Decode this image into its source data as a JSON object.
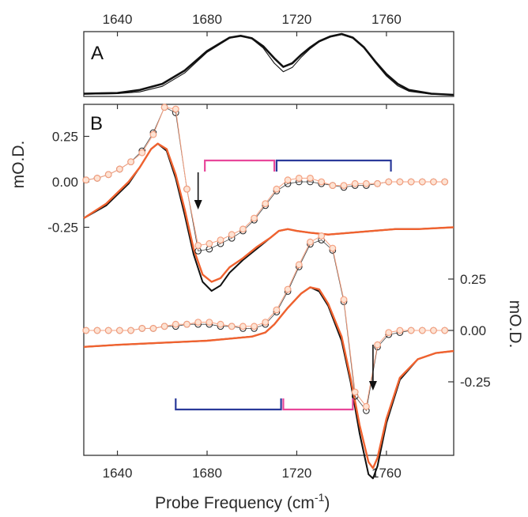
{
  "chart_data": [
    {
      "panel": "A",
      "type": "line",
      "x_ticks": [
        1640,
        1680,
        1720,
        1760
      ],
      "xlim": [
        1625,
        1790
      ],
      "series": [
        {
          "style": "thick",
          "color": "#111111",
          "x": [
            1625,
            1640,
            1650,
            1660,
            1670,
            1680,
            1690,
            1695,
            1700,
            1705,
            1710,
            1714,
            1718,
            1722,
            1726,
            1730,
            1735,
            1740,
            1745,
            1750,
            1755,
            1760,
            1765,
            1770,
            1780,
            1790
          ],
          "y": [
            0.02,
            0.03,
            0.08,
            0.18,
            0.4,
            0.72,
            0.94,
            0.97,
            0.93,
            0.8,
            0.6,
            0.46,
            0.52,
            0.66,
            0.78,
            0.88,
            0.96,
            1.0,
            0.94,
            0.78,
            0.55,
            0.34,
            0.18,
            0.08,
            0.02,
            0.0
          ]
        },
        {
          "style": "thin",
          "color": "#111111",
          "x": [
            1625,
            1640,
            1650,
            1660,
            1670,
            1680,
            1690,
            1695,
            1700,
            1705,
            1710,
            1714,
            1718,
            1722,
            1726,
            1730,
            1735,
            1740,
            1745,
            1750,
            1755,
            1760,
            1765,
            1770,
            1780,
            1790
          ],
          "y": [
            0.01,
            0.02,
            0.05,
            0.14,
            0.36,
            0.7,
            0.93,
            0.97,
            0.92,
            0.77,
            0.52,
            0.38,
            0.45,
            0.62,
            0.76,
            0.87,
            0.95,
            0.99,
            0.93,
            0.77,
            0.53,
            0.31,
            0.15,
            0.06,
            0.01,
            0.0
          ]
        }
      ]
    },
    {
      "panel": "B",
      "type": "line",
      "xlabel": "Probe Frequency (cm",
      "xlabel_sup": "-1",
      "xlabel_close": ")",
      "ylabel_left": "mO.D.",
      "ylabel_right": "mO.D.",
      "x_ticks": [
        1640,
        1680,
        1720,
        1760
      ],
      "xlim": [
        1625,
        1790
      ],
      "upper_y_ticks": [
        0.25,
        0.0,
        -0.25
      ],
      "upper_y_tick_labels": [
        "0.25",
        "0.00",
        "-0.25"
      ],
      "lower_y_ticks": [
        0.25,
        0.0,
        -0.25
      ],
      "lower_y_tick_labels": [
        "0.25",
        "0.00",
        "-0.25"
      ],
      "upper_trace": {
        "circles_black": {
          "x": [
            1626,
            1631,
            1636,
            1641,
            1646,
            1651,
            1656,
            1661,
            1666,
            1671,
            1676,
            1681,
            1686,
            1691,
            1696,
            1701,
            1706,
            1711,
            1716,
            1721,
            1726,
            1731,
            1736,
            1741,
            1746,
            1751,
            1756,
            1761,
            1766,
            1771,
            1776,
            1781,
            1786
          ],
          "y": [
            0.01,
            0.02,
            0.04,
            0.07,
            0.11,
            0.17,
            0.27,
            0.41,
            0.38,
            -0.04,
            -0.38,
            -0.37,
            -0.34,
            -0.31,
            -0.27,
            -0.21,
            -0.13,
            -0.05,
            -0.01,
            0.0,
            0.0,
            -0.01,
            -0.02,
            -0.03,
            -0.02,
            -0.02,
            -0.01,
            0.0,
            0.0,
            0.0,
            0.0,
            0.0,
            0.0
          ]
        },
        "circles_orange": {
          "x": [
            1626,
            1631,
            1636,
            1641,
            1646,
            1651,
            1656,
            1661,
            1666,
            1671,
            1676,
            1681,
            1686,
            1691,
            1696,
            1701,
            1706,
            1711,
            1716,
            1721,
            1726,
            1731,
            1736,
            1741,
            1746,
            1751,
            1756,
            1761,
            1766,
            1771,
            1776,
            1781,
            1786
          ],
          "y": [
            0.01,
            0.02,
            0.04,
            0.07,
            0.11,
            0.16,
            0.26,
            0.41,
            0.4,
            -0.04,
            -0.35,
            -0.34,
            -0.32,
            -0.29,
            -0.26,
            -0.2,
            -0.12,
            -0.04,
            0.01,
            0.02,
            0.02,
            0.0,
            -0.02,
            -0.02,
            -0.01,
            -0.01,
            -0.01,
            0.0,
            0.0,
            0.0,
            0.0,
            0.0,
            0.0
          ]
        },
        "line_black": {
          "x": [
            1625,
            1635,
            1645,
            1650,
            1655,
            1658,
            1662,
            1666,
            1670,
            1674,
            1678,
            1682,
            1686,
            1690,
            1696,
            1702,
            1708,
            1712,
            1716,
            1720,
            1726,
            1734,
            1744,
            1754,
            1764,
            1774,
            1790
          ],
          "y": [
            -0.2,
            -0.13,
            -0.01,
            0.08,
            0.18,
            0.21,
            0.17,
            0.02,
            -0.18,
            -0.4,
            -0.55,
            -0.6,
            -0.57,
            -0.5,
            -0.43,
            -0.37,
            -0.31,
            -0.27,
            -0.26,
            -0.27,
            -0.28,
            -0.29,
            -0.28,
            -0.27,
            -0.26,
            -0.26,
            -0.25
          ]
        },
        "line_orange": {
          "x": [
            1625,
            1635,
            1645,
            1650,
            1655,
            1658,
            1662,
            1666,
            1670,
            1674,
            1678,
            1682,
            1686,
            1690,
            1696,
            1702,
            1708,
            1712,
            1716,
            1720,
            1726,
            1734,
            1744,
            1754,
            1764,
            1774,
            1790
          ],
          "y": [
            -0.2,
            -0.12,
            0.0,
            0.08,
            0.18,
            0.21,
            0.18,
            0.04,
            -0.15,
            -0.37,
            -0.51,
            -0.55,
            -0.53,
            -0.47,
            -0.42,
            -0.36,
            -0.31,
            -0.27,
            -0.26,
            -0.27,
            -0.28,
            -0.29,
            -0.28,
            -0.27,
            -0.26,
            -0.26,
            -0.25
          ]
        },
        "arrow_x": 1676,
        "brackets": [
          {
            "color": "#e8479a",
            "x_start": 1679,
            "x_end": 1710
          },
          {
            "color": "#2a3a9a",
            "x_start": 1711,
            "x_end": 1762
          }
        ]
      },
      "lower_trace": {
        "circles_black": {
          "x": [
            1626,
            1631,
            1636,
            1641,
            1646,
            1651,
            1656,
            1661,
            1666,
            1671,
            1676,
            1681,
            1686,
            1691,
            1696,
            1701,
            1706,
            1711,
            1716,
            1721,
            1726,
            1731,
            1736,
            1741,
            1746,
            1751,
            1756,
            1761,
            1766,
            1771,
            1776,
            1781,
            1786
          ],
          "y": [
            0.0,
            0.0,
            0.0,
            0.0,
            0.0,
            0.01,
            0.01,
            0.02,
            0.02,
            0.03,
            0.03,
            0.03,
            0.02,
            0.02,
            0.01,
            0.01,
            0.03,
            0.09,
            0.19,
            0.31,
            0.42,
            0.44,
            0.39,
            0.14,
            -0.32,
            -0.39,
            -0.08,
            -0.02,
            -0.01,
            0.0,
            0.0,
            0.0,
            0.0
          ]
        },
        "circles_orange": {
          "x": [
            1626,
            1631,
            1636,
            1641,
            1646,
            1651,
            1656,
            1661,
            1666,
            1671,
            1676,
            1681,
            1686,
            1691,
            1696,
            1701,
            1706,
            1711,
            1716,
            1721,
            1726,
            1731,
            1736,
            1741,
            1746,
            1751,
            1756,
            1761,
            1766,
            1771,
            1776,
            1781,
            1786
          ],
          "y": [
            0.0,
            0.0,
            0.0,
            0.0,
            0.0,
            0.01,
            0.01,
            0.02,
            0.03,
            0.03,
            0.04,
            0.04,
            0.03,
            0.02,
            0.02,
            0.02,
            0.04,
            0.1,
            0.2,
            0.32,
            0.43,
            0.46,
            0.4,
            0.15,
            -0.3,
            -0.37,
            -0.07,
            -0.01,
            0.0,
            0.0,
            0.0,
            0.0,
            0.0
          ]
        },
        "line_black": {
          "x": [
            1625,
            1640,
            1660,
            1680,
            1690,
            1700,
            1706,
            1710,
            1716,
            1722,
            1726,
            1730,
            1734,
            1740,
            1744,
            1748,
            1752,
            1754,
            1756,
            1760,
            1766,
            1774,
            1782,
            1790
          ],
          "y": [
            -0.08,
            -0.07,
            -0.06,
            -0.05,
            -0.04,
            -0.03,
            -0.01,
            0.03,
            0.11,
            0.18,
            0.21,
            0.19,
            0.12,
            -0.05,
            -0.25,
            -0.5,
            -0.7,
            -0.72,
            -0.66,
            -0.45,
            -0.24,
            -0.14,
            -0.11,
            -0.1
          ]
        },
        "line_orange": {
          "x": [
            1625,
            1640,
            1660,
            1680,
            1690,
            1700,
            1706,
            1710,
            1716,
            1722,
            1726,
            1730,
            1734,
            1740,
            1744,
            1748,
            1752,
            1754,
            1756,
            1760,
            1766,
            1774,
            1782,
            1790
          ],
          "y": [
            -0.08,
            -0.07,
            -0.06,
            -0.05,
            -0.04,
            -0.03,
            -0.01,
            0.03,
            0.11,
            0.18,
            0.21,
            0.2,
            0.13,
            -0.03,
            -0.23,
            -0.46,
            -0.64,
            -0.67,
            -0.62,
            -0.43,
            -0.23,
            -0.14,
            -0.11,
            -0.1
          ]
        },
        "arrow_x": 1754,
        "brackets": [
          {
            "color": "#2a3a9a",
            "x_start": 1666,
            "x_end": 1713
          },
          {
            "color": "#e8479a",
            "x_start": 1714,
            "x_end": 1745
          }
        ]
      }
    }
  ]
}
